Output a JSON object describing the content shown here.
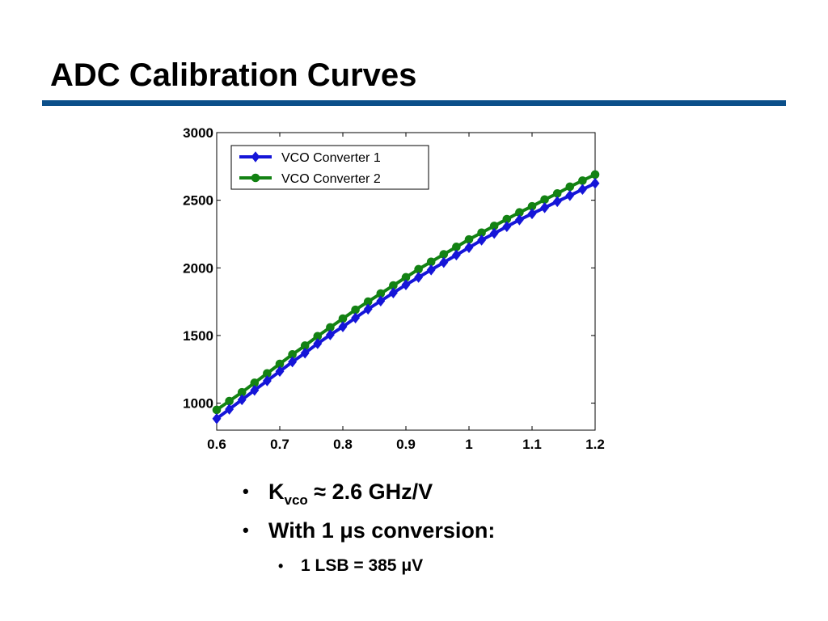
{
  "slide": {
    "title": "ADC Calibration Curves",
    "accent_color": "#0b4f8a"
  },
  "chart_data": {
    "type": "line",
    "title": "",
    "xlabel": "",
    "ylabel": "",
    "xlim": [
      0.6,
      1.2
    ],
    "ylim": [
      800,
      3000
    ],
    "grid": false,
    "legend_position": "top-left",
    "x_ticks": [
      "0.6",
      "0.7",
      "0.8",
      "0.9",
      "1",
      "1.1",
      "1.2"
    ],
    "y_ticks": [
      "1000",
      "1500",
      "2000",
      "2500",
      "3000"
    ],
    "x_tick_values": [
      0.6,
      0.7,
      0.8,
      0.9,
      1.0,
      1.1,
      1.2
    ],
    "y_tick_values": [
      1000,
      1500,
      2000,
      2500,
      3000
    ],
    "x": [
      0.6,
      0.62,
      0.64,
      0.66,
      0.68,
      0.7,
      0.72,
      0.74,
      0.76,
      0.78,
      0.8,
      0.82,
      0.84,
      0.86,
      0.88,
      0.9,
      0.92,
      0.94,
      0.96,
      0.98,
      1.0,
      1.02,
      1.04,
      1.06,
      1.08,
      1.1,
      1.12,
      1.14,
      1.16,
      1.18,
      1.2
    ],
    "series": [
      {
        "name": "VCO Converter 1",
        "color": "#1515d8",
        "marker": "diamond",
        "values": [
          885,
          955,
          1025,
          1095,
          1165,
          1235,
          1305,
          1370,
          1440,
          1505,
          1565,
          1630,
          1695,
          1755,
          1815,
          1875,
          1930,
          1985,
          2040,
          2095,
          2150,
          2205,
          2255,
          2305,
          2355,
          2400,
          2445,
          2490,
          2535,
          2580,
          2625
        ]
      },
      {
        "name": "VCO Converter 2",
        "color": "#138213",
        "marker": "circle",
        "values": [
          950,
          1015,
          1080,
          1150,
          1220,
          1290,
          1360,
          1425,
          1495,
          1560,
          1625,
          1690,
          1750,
          1810,
          1870,
          1930,
          1990,
          2045,
          2100,
          2155,
          2210,
          2260,
          2310,
          2360,
          2410,
          2455,
          2505,
          2550,
          2600,
          2645,
          2690
        ]
      }
    ]
  },
  "bullets": {
    "b1_main": "K",
    "b1_sub": "vco",
    "b1_rest": " ≈ 2.6 GHz/V",
    "b2": "With 1 μs conversion:",
    "b3": "1 LSB = 385 μV",
    "marker": "•"
  }
}
